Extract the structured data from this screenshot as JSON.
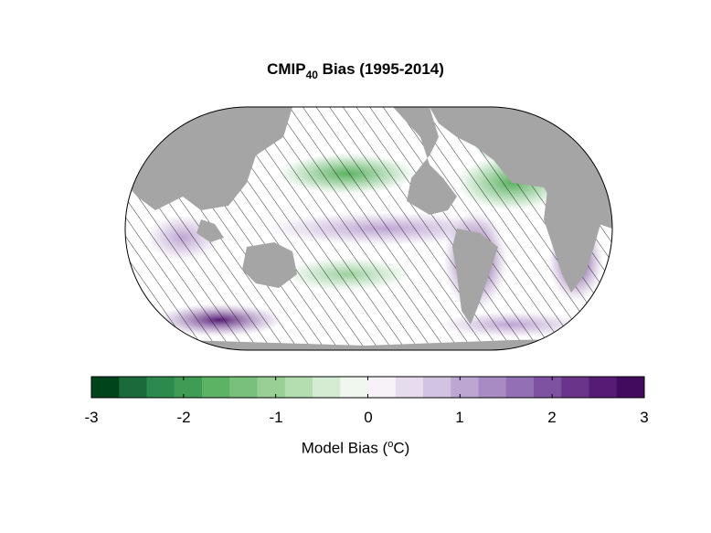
{
  "figure": {
    "title_main": "CMIP",
    "title_sub": "40",
    "title_rest": " Bias (1995-2014)"
  },
  "colorbar": {
    "label_pre": "Model Bias (",
    "label_sup": "o",
    "label_post": "C)",
    "ticks": [
      "-3",
      "-2",
      "-1",
      "0",
      "1",
      "2",
      "3"
    ],
    "range": [
      -3,
      3
    ],
    "colors": [
      "#00441b",
      "#1b6a3b",
      "#2d8a4e",
      "#3f9c54",
      "#5cb363",
      "#78c07c",
      "#97cf94",
      "#b5deb0",
      "#d5ecd2",
      "#f0f7ef",
      "#f6f2f7",
      "#e6dcee",
      "#d3c3e2",
      "#bea6d3",
      "#a78bc2",
      "#9370b4",
      "#7e52a0",
      "#6a348a",
      "#561c75",
      "#420b5e"
    ]
  },
  "map": {
    "projection": "Equal Earth",
    "land_color": "#a5a5a5",
    "ocean_neutral_color": "#ffffff",
    "hatching": "stippled/hatched regions of low model agreement"
  }
}
